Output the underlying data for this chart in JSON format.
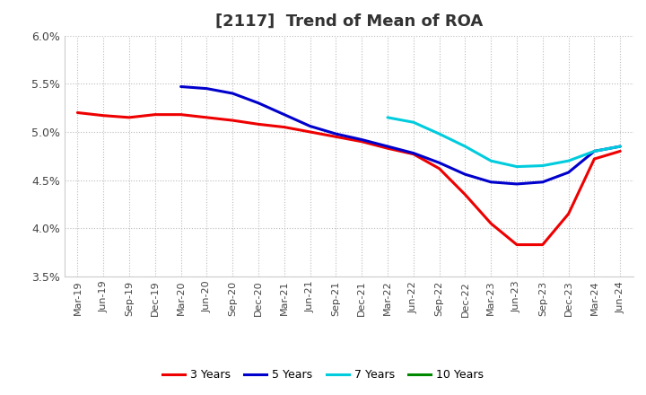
{
  "title": "[2117]  Trend of Mean of ROA",
  "ylim": [
    0.035,
    0.06
  ],
  "yticks": [
    0.035,
    0.04,
    0.045,
    0.05,
    0.055,
    0.06
  ],
  "ytick_labels": [
    "3.5%",
    "4.0%",
    "4.5%",
    "5.0%",
    "5.5%",
    "6.0%"
  ],
  "background_color": "#ffffff",
  "grid_color": "#bbbbbb",
  "title_fontsize": 13,
  "title_color": "#333333",
  "x_labels": [
    "Mar-19",
    "Jun-19",
    "Sep-19",
    "Dec-19",
    "Mar-20",
    "Jun-20",
    "Sep-20",
    "Dec-20",
    "Mar-21",
    "Jun-21",
    "Sep-21",
    "Dec-21",
    "Mar-22",
    "Jun-22",
    "Sep-22",
    "Dec-22",
    "Mar-23",
    "Jun-23",
    "Sep-23",
    "Dec-23",
    "Mar-24",
    "Jun-24"
  ],
  "series": {
    "3 Years": {
      "color": "#ee0000",
      "values": [
        0.052,
        0.0517,
        0.0515,
        0.0518,
        0.0518,
        0.0515,
        0.0512,
        0.0508,
        0.0505,
        0.05,
        0.0495,
        0.049,
        0.0483,
        0.0477,
        0.0462,
        0.0435,
        0.0405,
        0.0383,
        0.0383,
        0.0415,
        0.0472,
        0.048
      ]
    },
    "5 Years": {
      "color": "#0000cc",
      "values": [
        null,
        null,
        null,
        null,
        0.0547,
        0.0545,
        0.054,
        0.053,
        0.0518,
        0.0506,
        0.0498,
        0.0492,
        0.0485,
        0.0478,
        0.0468,
        0.0456,
        0.0448,
        0.0446,
        0.0448,
        0.0458,
        0.048,
        0.0485
      ]
    },
    "7 Years": {
      "color": "#00ccdd",
      "values": [
        null,
        null,
        null,
        null,
        null,
        null,
        null,
        null,
        null,
        null,
        null,
        null,
        0.0515,
        0.051,
        0.0498,
        0.0485,
        0.047,
        0.0464,
        0.0465,
        0.047,
        0.048,
        0.0485
      ]
    },
    "10 Years": {
      "color": "#008800",
      "values": [
        null,
        null,
        null,
        null,
        null,
        null,
        null,
        null,
        null,
        null,
        null,
        null,
        null,
        null,
        null,
        null,
        null,
        null,
        null,
        null,
        null,
        null
      ]
    }
  },
  "legend_order": [
    "3 Years",
    "5 Years",
    "7 Years",
    "10 Years"
  ]
}
